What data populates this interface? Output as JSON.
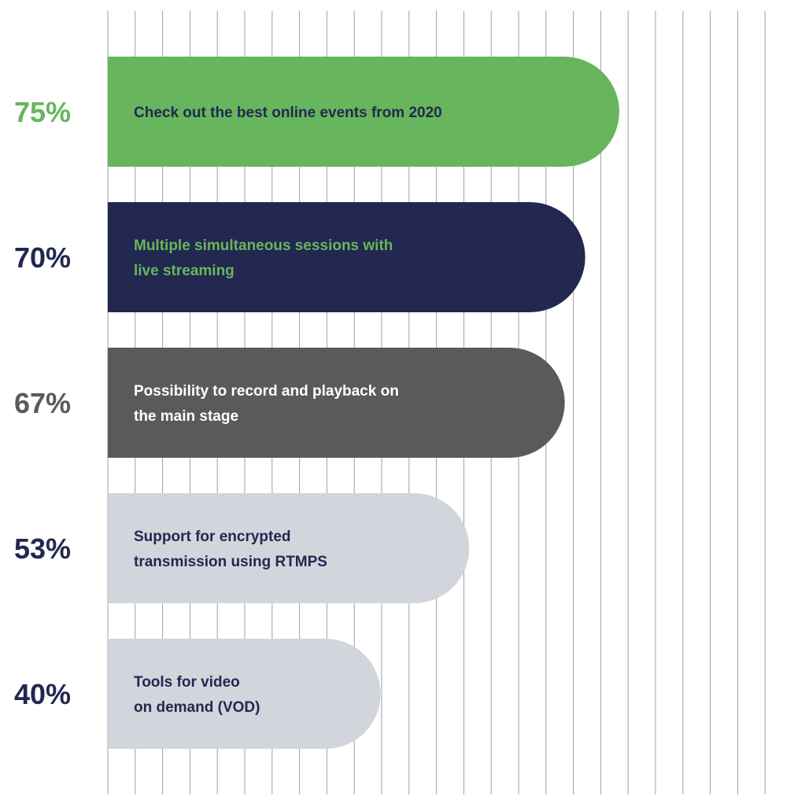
{
  "chart_data": {
    "type": "bar",
    "orientation": "horizontal",
    "grid": true,
    "categories": [
      [
        "Check out the best online events from 2020"
      ],
      [
        "Multiple simultaneous sessions with",
        "live streaming"
      ],
      [
        "Possibility to record and playback on",
        "the main stage"
      ],
      [
        "Support for encrypted",
        "transmission using RTMPS"
      ],
      [
        "Tools for video",
        "on demand (VOD)"
      ]
    ],
    "values": [
      75,
      70,
      67,
      53,
      40
    ],
    "value_labels": [
      "75%",
      "70%",
      "67%",
      "53%",
      "40%"
    ],
    "bar_colors": [
      "#67b65d",
      "#222850",
      "#5a5a5c",
      "#d2d5db",
      "#d2d5db"
    ],
    "label_colors": [
      "#222850",
      "#67b65d",
      "#ffffff",
      "#222850",
      "#222850"
    ],
    "value_label_colors": [
      "#67b65d",
      "#222850",
      "#5a5a5c",
      "#222850",
      "#222850"
    ],
    "grid_color": "#9aa0aa"
  }
}
